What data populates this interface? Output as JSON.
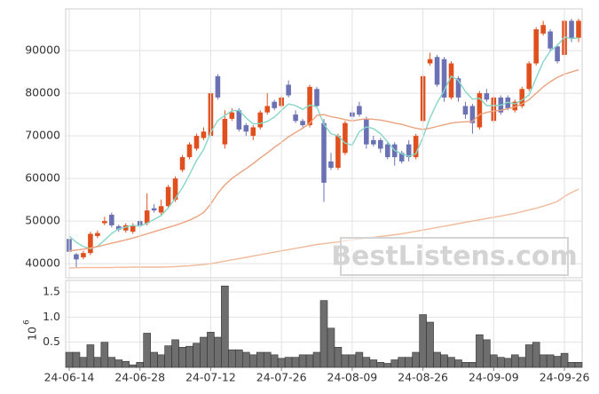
{
  "watermark": "BestListens.com",
  "chart_data": [
    {
      "type": "candlestick",
      "open": [
        45800,
        42200,
        41500,
        42500,
        46500,
        49500,
        51500,
        48800,
        47800,
        47500,
        50000,
        49500,
        53000,
        52000,
        53500,
        55000,
        62000,
        65000,
        67000,
        69500,
        70000,
        84000,
        68000,
        74000,
        76000,
        72500,
        70000,
        72000,
        75500,
        78000,
        77000,
        82000,
        75000,
        73500,
        72500,
        81000,
        73000,
        64000,
        62500,
        66000,
        75500,
        77000,
        74000,
        69000,
        69000,
        68000,
        68000,
        66000,
        68000,
        65000,
        73500,
        87000,
        88500,
        88000,
        79000,
        83500,
        77000,
        77000,
        72000,
        80000,
        73500,
        79000,
        79000,
        76000,
        77000,
        81000,
        87000,
        94000,
        94500,
        91000,
        89000,
        97000,
        93000
      ],
      "high": [
        46500,
        42500,
        43000,
        47500,
        47800,
        51000,
        52000,
        49200,
        49500,
        49500,
        50300,
        56500,
        54000,
        55000,
        58500,
        60500,
        65500,
        68500,
        70500,
        72000,
        80500,
        84500,
        76000,
        76500,
        76500,
        73000,
        72500,
        76000,
        80000,
        78500,
        79500,
        83000,
        76000,
        74000,
        82000,
        81500,
        74000,
        66000,
        70500,
        73500,
        77000,
        78000,
        74500,
        70000,
        69500,
        68500,
        68500,
        66500,
        69000,
        70500,
        84500,
        89500,
        89000,
        88500,
        87500,
        84000,
        78000,
        77500,
        80500,
        81000,
        79500,
        79500,
        79500,
        78500,
        81500,
        87500,
        95500,
        97000,
        95000,
        91500,
        97500,
        97500,
        97500
      ],
      "low": [
        42200,
        39000,
        41000,
        42000,
        46000,
        49000,
        48500,
        47500,
        47300,
        47000,
        48500,
        49000,
        52000,
        51500,
        53000,
        54500,
        61500,
        64500,
        66500,
        69000,
        69500,
        78500,
        67000,
        73500,
        71000,
        70000,
        69000,
        71500,
        75000,
        76000,
        76500,
        79000,
        73000,
        72000,
        72000,
        76500,
        54500,
        62000,
        62000,
        65500,
        73500,
        74500,
        67000,
        67500,
        66000,
        64500,
        63000,
        63500,
        64000,
        64500,
        73000,
        86500,
        81500,
        78000,
        78500,
        78000,
        74000,
        70500,
        71500,
        78000,
        73000,
        75000,
        76000,
        75500,
        76500,
        80500,
        86500,
        93500,
        90000,
        87000,
        88500,
        92000,
        92000
      ],
      "close": [
        42800,
        41000,
        42500,
        47000,
        47200,
        50000,
        49000,
        48000,
        49000,
        49000,
        49000,
        52500,
        52500,
        53500,
        58000,
        60000,
        65000,
        68000,
        70000,
        71000,
        80000,
        79000,
        74000,
        75500,
        71500,
        71000,
        72000,
        75500,
        77000,
        76500,
        79000,
        79500,
        73500,
        72500,
        81500,
        77000,
        59000,
        62500,
        70000,
        73000,
        74500,
        75000,
        68000,
        68000,
        67000,
        65000,
        65000,
        64000,
        65000,
        70000,
        84000,
        88000,
        82000,
        79000,
        87000,
        79000,
        75000,
        73000,
        80000,
        78500,
        79000,
        75500,
        76500,
        78000,
        81000,
        87000,
        95000,
        96000,
        90500,
        87500,
        97000,
        93000,
        97000
      ],
      "up_color": "#e0501e",
      "down_color": "#6b72b4",
      "series": [
        {
          "color": "#86d6c6",
          "values": [
            46500,
            45000,
            44000,
            43500,
            44100,
            45500,
            47100,
            48200,
            48600,
            49000,
            48800,
            49500,
            50400,
            51300,
            53100,
            55300,
            57800,
            60900,
            64200,
            66800,
            70800,
            73600,
            74800,
            75900,
            76000,
            74200,
            72800,
            72900,
            73400,
            74400,
            76000,
            77500,
            77100,
            76200,
            77200,
            76800,
            72700,
            70500,
            70000,
            68300,
            67800,
            71000,
            72100,
            71700,
            70500,
            68600,
            66600,
            65800,
            65200,
            65800,
            69600,
            74200,
            77800,
            80600,
            84000,
            83000,
            80400,
            78600,
            78800,
            77100,
            77100,
            77200,
            77900,
            77500,
            78400,
            79600,
            83600,
            87400,
            89900,
            91200,
            93200,
            92800,
            93000
          ]
        },
        {
          "color": "#eba27e",
          "values": [
            43000,
            43200,
            43400,
            43700,
            44000,
            44400,
            44800,
            45200,
            45600,
            46000,
            46500,
            47000,
            47500,
            48000,
            48500,
            49000,
            49600,
            50200,
            51000,
            52000,
            54000,
            56500,
            58500,
            60000,
            61200,
            62300,
            63500,
            64800,
            66000,
            67300,
            68500,
            69800,
            70800,
            71800,
            73000,
            74800,
            75000,
            74500,
            74200,
            73800,
            73500,
            73800,
            74000,
            73900,
            73700,
            73400,
            73000,
            72700,
            72200,
            71800,
            71500,
            71800,
            72200,
            72600,
            73000,
            73200,
            73300,
            73400,
            75000,
            75500,
            75800,
            76000,
            76400,
            76800,
            77500,
            78500,
            80000,
            81500,
            82700,
            83700,
            84500,
            85000,
            85500
          ]
        },
        {
          "color": "#f1bb9c",
          "values": [
            39000,
            39050,
            39100,
            39100,
            39100,
            39100,
            39100,
            39150,
            39150,
            39200,
            39200,
            39200,
            39200,
            39200,
            39250,
            39300,
            39400,
            39500,
            39650,
            39800,
            40000,
            40300,
            40600,
            40900,
            41200,
            41500,
            41800,
            42100,
            42400,
            42700,
            43000,
            43300,
            43600,
            43900,
            44200,
            44500,
            44700,
            44900,
            45100,
            45400,
            45600,
            45800,
            46000,
            46200,
            46400,
            46600,
            46800,
            47000,
            47300,
            47600,
            47900,
            48200,
            48500,
            48800,
            49100,
            49400,
            49700,
            50000,
            50300,
            50600,
            50900,
            51200,
            51500,
            51800,
            52200,
            52600,
            53000,
            53500,
            54000,
            54600,
            55800,
            56700,
            57500
          ]
        }
      ],
      "ylim": [
        36700,
        99800
      ],
      "yticks": [
        40000,
        50000,
        60000,
        70000,
        80000,
        90000
      ],
      "grid": true
    },
    {
      "type": "bar",
      "categories": [
        "24-06-14",
        null,
        null,
        null,
        null,
        null,
        null,
        null,
        null,
        null,
        "24-06-28",
        null,
        null,
        null,
        null,
        null,
        null,
        null,
        null,
        null,
        "24-07-12",
        null,
        null,
        null,
        null,
        null,
        null,
        null,
        null,
        null,
        "24-07-26",
        null,
        null,
        null,
        null,
        null,
        null,
        null,
        null,
        null,
        "24-08-09",
        null,
        null,
        null,
        null,
        null,
        null,
        null,
        null,
        null,
        "24-08-26",
        null,
        null,
        null,
        null,
        null,
        null,
        null,
        null,
        null,
        "24-09-09",
        null,
        null,
        null,
        null,
        null,
        null,
        null,
        null,
        null,
        "24-09-26",
        null,
        null
      ],
      "values": [
        0.3,
        0.3,
        0.2,
        0.45,
        0.2,
        0.5,
        0.2,
        0.15,
        0.12,
        0.05,
        0.1,
        0.68,
        0.3,
        0.25,
        0.43,
        0.55,
        0.4,
        0.42,
        0.48,
        0.6,
        0.7,
        0.6,
        1.62,
        0.35,
        0.35,
        0.3,
        0.25,
        0.3,
        0.3,
        0.25,
        0.18,
        0.2,
        0.2,
        0.25,
        0.25,
        0.3,
        1.33,
        0.78,
        0.4,
        0.25,
        0.25,
        0.3,
        0.2,
        0.15,
        0.1,
        0.08,
        0.15,
        0.2,
        0.2,
        0.3,
        1.05,
        0.9,
        0.3,
        0.25,
        0.2,
        0.15,
        0.1,
        0.1,
        0.65,
        0.55,
        0.25,
        0.2,
        0.18,
        0.25,
        0.2,
        0.45,
        0.5,
        0.25,
        0.25,
        0.22,
        0.28,
        0.1,
        0.1
      ],
      "color": "#6e6e6e",
      "ylabel_base": "10",
      "ylabel_exponent": 6,
      "ylim": [
        0,
        1.73
      ],
      "yticks": [
        0.5,
        {
          "value": 1,
          "label": "1.0"
        },
        1.5
      ],
      "grid": true
    }
  ]
}
